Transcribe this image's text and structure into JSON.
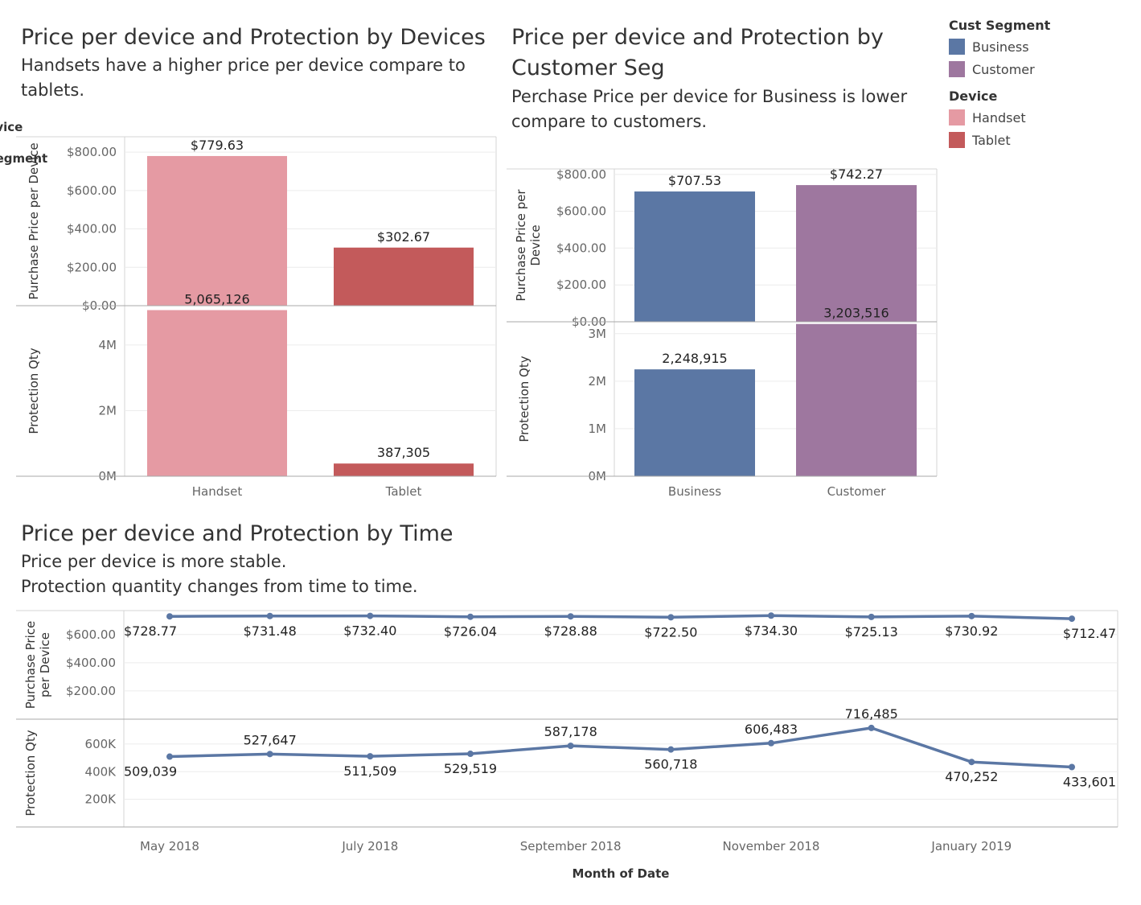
{
  "panels": {
    "device": {
      "title": "Price per device and Protection by Devices",
      "subtitle": "Handsets have a higher price per device compare to tablets."
    },
    "segment": {
      "title": "Price per device and Protection by Customer Seg",
      "subtitle": "Perchase Price per device for Business is lower compare to customers."
    },
    "time": {
      "title": "Price per device and Protection by Time",
      "subtitle_line1": "Price per device is more stable.",
      "subtitle_line2": "Protection quantity changes from time to time."
    }
  },
  "legend": {
    "groups": [
      {
        "title": "Cust Segment",
        "items": [
          {
            "label": "Business",
            "color": "#5b77a4"
          },
          {
            "label": "Customer",
            "color": "#9e779f"
          }
        ]
      },
      {
        "title": "Device",
        "items": [
          {
            "label": "Handset",
            "color": "#e59aa3"
          },
          {
            "label": "Tablet",
            "color": "#c35a5b"
          }
        ]
      }
    ]
  },
  "chart_data": [
    {
      "type": "bar",
      "header": "Device",
      "categories": [
        "Handset",
        "Tablet"
      ],
      "colors": [
        "#e59aa3",
        "#c35a5b"
      ],
      "top": {
        "ylabel": "Purchase Price per Device",
        "values": [
          779.63,
          302.67
        ],
        "labels": [
          "$779.63",
          "$302.67"
        ],
        "ylim": [
          0,
          880
        ],
        "ticks": [
          0,
          200,
          400,
          600,
          800
        ],
        "tick_labels": [
          "$0.00",
          "$200.00",
          "$400.00",
          "$600.00",
          "$800.00"
        ]
      },
      "bottom": {
        "ylabel": "Protection Qty",
        "values": [
          5065126,
          387305
        ],
        "labels": [
          "5,065,126",
          "387,305"
        ],
        "ylim": [
          0,
          5200000
        ],
        "ticks": [
          0,
          2000000,
          4000000
        ],
        "tick_labels": [
          "0M",
          "2M",
          "4M"
        ]
      },
      "grid": true
    },
    {
      "type": "bar",
      "header": "Cust Segment",
      "categories": [
        "Business",
        "Customer"
      ],
      "colors": [
        "#5b77a4",
        "#9e779f"
      ],
      "top": {
        "ylabel": "Purchase Price per Device",
        "values": [
          707.53,
          742.27
        ],
        "labels": [
          "$707.53",
          "$742.27"
        ],
        "ylim": [
          0,
          830
        ],
        "ticks": [
          0,
          200,
          400,
          600,
          800
        ],
        "tick_labels": [
          "$0.00",
          "$200.00",
          "$400.00",
          "$600.00",
          "$800.00"
        ]
      },
      "bottom": {
        "ylabel": "Protection Qty",
        "values": [
          2248915,
          3203516
        ],
        "labels": [
          "2,248,915",
          "3,203,516"
        ],
        "ylim": [
          0,
          3250000
        ],
        "ticks": [
          0,
          1000000,
          2000000,
          3000000
        ],
        "tick_labels": [
          "0M",
          "1M",
          "2M",
          "3M"
        ]
      },
      "grid": true
    },
    {
      "type": "line",
      "xlabel": "Month of Date",
      "x": [
        "2018-05",
        "2018-06",
        "2018-07",
        "2018-08",
        "2018-09",
        "2018-10",
        "2018-11",
        "2018-12",
        "2019-01",
        "2019-02"
      ],
      "x_tick_labels": [
        {
          "x": "2018-05",
          "label": "May 2018"
        },
        {
          "x": "2018-07",
          "label": "July 2018"
        },
        {
          "x": "2018-09",
          "label": "September 2018"
        },
        {
          "x": "2018-11",
          "label": "November 2018"
        },
        {
          "x": "2019-01",
          "label": "January 2019"
        }
      ],
      "color": "#5b77a4",
      "top": {
        "ylabel": "Purchase Price per Device",
        "values": [
          728.77,
          731.48,
          732.4,
          726.04,
          728.88,
          722.5,
          734.3,
          725.13,
          730.92,
          712.47
        ],
        "labels": [
          "$728.77",
          "$731.48",
          "$732.40",
          "$726.04",
          "$728.88",
          "$722.50",
          "$734.30",
          "$725.13",
          "$730.92",
          "$712.47"
        ],
        "ylim": [
          0,
          770
        ],
        "ticks": [
          200,
          400,
          600
        ],
        "tick_labels": [
          "$200.00",
          "$400.00",
          "$600.00"
        ]
      },
      "bottom": {
        "ylabel": "Protection Qty",
        "values": [
          509039,
          527647,
          511509,
          529519,
          587178,
          560718,
          606483,
          716485,
          470252,
          433601
        ],
        "labels": [
          "509,039",
          "527,647",
          "511,509",
          "529,519",
          "587,178",
          "560,718",
          "606,483",
          "716,485",
          "470,252",
          "433,601"
        ],
        "ylim": [
          0,
          780000
        ],
        "ticks": [
          200000,
          400000,
          600000
        ],
        "tick_labels": [
          "200K",
          "400K",
          "600K"
        ]
      },
      "grid": true
    }
  ]
}
